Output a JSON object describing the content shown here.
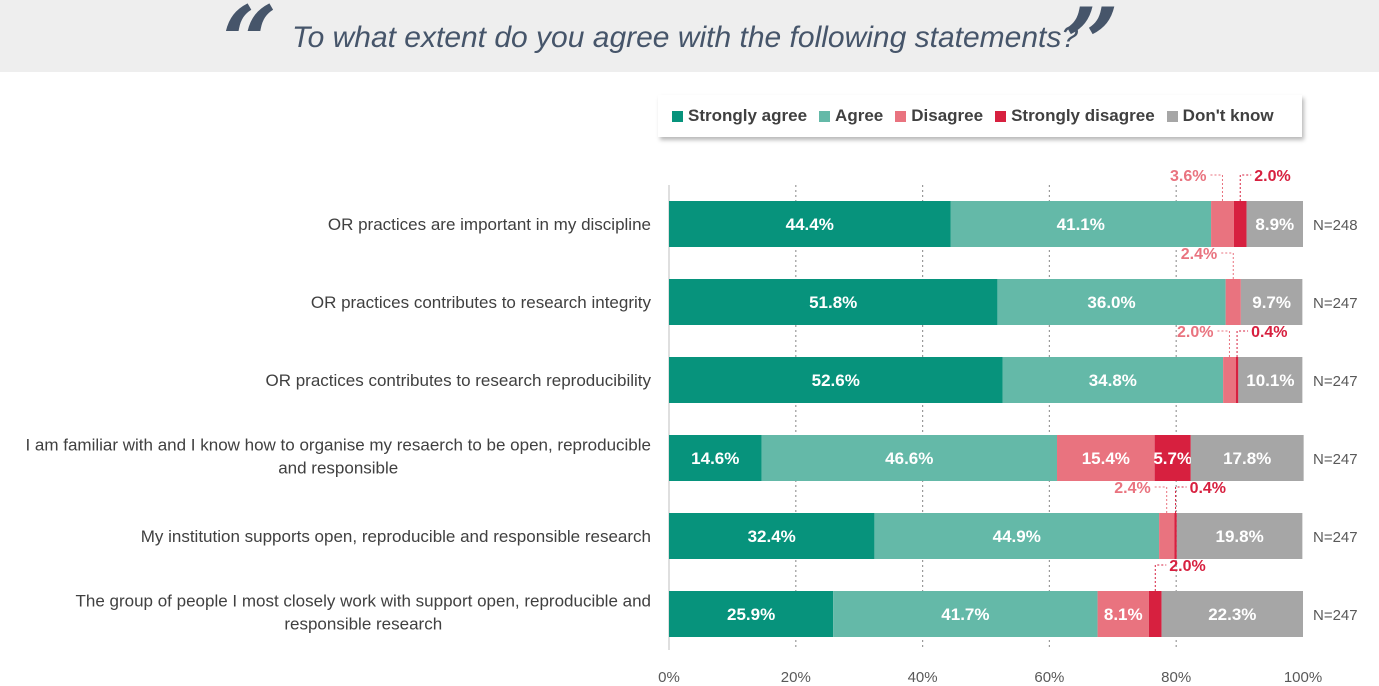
{
  "header": {
    "title": "To what extent do you agree with the following statements?",
    "open_quote": "“",
    "close_quote": "”"
  },
  "chart_data": {
    "type": "bar",
    "orientation": "horizontal-stacked-percent",
    "title": "To what extent do you agree with the following statements?",
    "xlim": [
      0,
      100
    ],
    "x_ticks": [
      "0%",
      "20%",
      "40%",
      "60%",
      "80%",
      "100%"
    ],
    "grid": "vertical dotted",
    "legend_position": "top-right",
    "categories": [
      "OR practices are important in my discipline",
      "OR practices contributes to research integrity",
      "OR practices contributes to research reproducibility",
      "I am familiar with and I know how to organise my resaerch to be open, reproducible and responsible",
      "My institution supports open, reproducible and responsible research",
      "The group of people I most closely work with support open, reproducible and responsible research"
    ],
    "category_lines": [
      [
        "OR practices are important in my discipline"
      ],
      [
        "OR practices contributes to research integrity"
      ],
      [
        "OR practices contributes to research reproducibility"
      ],
      [
        "I am familiar with and I know how to organise my resaerch to be open, reproducible",
        "and responsible"
      ],
      [
        "My institution supports open, reproducible and responsible research"
      ],
      [
        "The group of people I most closely work with support open, reproducible and",
        "responsible research"
      ]
    ],
    "sample_sizes": [
      "N=248",
      "N=247",
      "N=247",
      "N=247",
      "N=247",
      "N=247"
    ],
    "series": [
      {
        "name": "Strongly agree",
        "color": "#07937c",
        "values": [
          44.4,
          51.8,
          52.6,
          14.6,
          32.4,
          25.9
        ]
      },
      {
        "name": "Agree",
        "color": "#64b9a8",
        "values": [
          41.1,
          36.0,
          34.8,
          46.6,
          44.9,
          41.7
        ]
      },
      {
        "name": "Disagree",
        "color": "#e9737f",
        "values": [
          3.6,
          2.4,
          2.0,
          15.4,
          2.4,
          8.1
        ]
      },
      {
        "name": "Strongly disagree",
        "color": "#d7203f",
        "values": [
          2.0,
          0.0,
          0.4,
          5.7,
          0.4,
          2.0
        ]
      },
      {
        "name": "Don't know",
        "color": "#a6a6a6",
        "values": [
          8.9,
          9.7,
          10.1,
          17.8,
          19.8,
          22.3
        ]
      }
    ],
    "value_labels": [
      [
        "44.4%",
        "41.1%",
        "3.6%",
        "2.0%",
        "8.9%"
      ],
      [
        "51.8%",
        "36.0%",
        "2.4%",
        "",
        "9.7%"
      ],
      [
        "52.6%",
        "34.8%",
        "2.0%",
        "0.4%",
        "10.1%"
      ],
      [
        "14.6%",
        "46.6%",
        "15.4%",
        "5.7%",
        "17.8%"
      ],
      [
        "32.4%",
        "44.9%",
        "2.4%",
        "0.4%",
        "19.8%"
      ],
      [
        "25.9%",
        "41.7%",
        "8.1%",
        "2.0%",
        "22.3%"
      ]
    ],
    "callout_labels": [
      [
        2,
        3
      ],
      [
        2
      ],
      [
        2,
        3
      ],
      [],
      [
        2,
        3
      ],
      [
        3
      ]
    ]
  }
}
